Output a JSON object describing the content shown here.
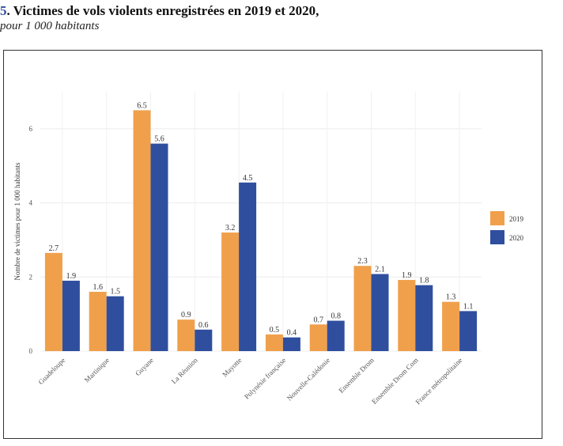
{
  "header": {
    "number": "5",
    "title": ". Victimes de vols violents enregistrées en 2019 et 2020,",
    "subtitle": "pour 1 000 habitants"
  },
  "colors": {
    "2019": "#f0a04b",
    "2020": "#2f4f9e"
  },
  "chart_data": {
    "type": "bar",
    "title": "",
    "xlabel": "",
    "ylabel": "Nombre de victimes pour 1 000 habitants",
    "ylim": [
      0,
      7
    ],
    "yticks": [
      0,
      2,
      4,
      6
    ],
    "grid": true,
    "legend_position": "right",
    "categories": [
      "Guadeloupe",
      "Martinique",
      "Guyane",
      "La Réunion",
      "Mayotte",
      "Polynésie française",
      "Nouvelle-Calédonie",
      "Ensemble Drom",
      "Ensemble Drom Com",
      "France métropolitaine"
    ],
    "series": [
      {
        "name": "2019",
        "values": [
          2.65,
          1.6,
          6.5,
          0.85,
          3.2,
          0.45,
          0.72,
          2.3,
          1.92,
          1.33
        ],
        "labels": [
          "2.7",
          "1.6",
          "6.5",
          "0.9",
          "3.2",
          "0.5",
          "0.7",
          "2.3",
          "1.9",
          "1.3"
        ]
      },
      {
        "name": "2020",
        "values": [
          1.9,
          1.48,
          5.6,
          0.58,
          4.55,
          0.37,
          0.82,
          2.08,
          1.78,
          1.08
        ],
        "labels": [
          "1.9",
          "1.5",
          "5.6",
          "0.6",
          "4.5",
          "0.4",
          "0.8",
          "2.1",
          "1.8",
          "1.1"
        ]
      }
    ]
  }
}
